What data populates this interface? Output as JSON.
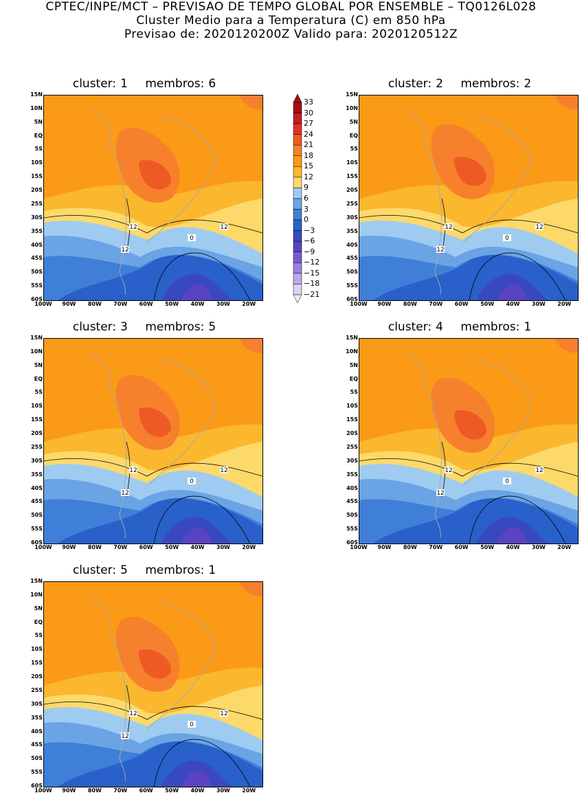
{
  "title": {
    "line1": "CPTEC/INPE/MCT – PREVISAO DE TEMPO GLOBAL POR ENSEMBLE – TQ0126L028",
    "line2": "Cluster Medio para a Temperatura (C) em 850 hPa",
    "line3": "Previsao de: 2020120200Z    Valido para: 2020120512Z"
  },
  "axes": {
    "y_ticks": [
      "15N",
      "10N",
      "5N",
      "EQ",
      "5S",
      "10S",
      "15S",
      "20S",
      "25S",
      "30S",
      "35S",
      "40S",
      "45S",
      "50S",
      "55S",
      "60S"
    ],
    "x_ticks": [
      "100W",
      "90W",
      "80W",
      "70W",
      "60W",
      "50W",
      "40W",
      "30W",
      "20W"
    ]
  },
  "legend": {
    "labels": [
      "33",
      "30",
      "27",
      "24",
      "21",
      "18",
      "15",
      "12",
      "9",
      "6",
      "3",
      "0",
      "−3",
      "−6",
      "−9",
      "−12",
      "−15",
      "−18",
      "−21"
    ],
    "colors": [
      "#a50f15",
      "#c81d1f",
      "#e0342b",
      "#ee5a24",
      "#f7802c",
      "#fb9a16",
      "#fbb72e",
      "#fdd96a",
      "#9fcbf1",
      "#6aa4e5",
      "#3f7fd8",
      "#2960c9",
      "#3a48c0",
      "#5a43c0",
      "#7a5ad0",
      "#9a80de",
      "#bba8ea",
      "#dcd2f5"
    ]
  },
  "contour_labels": {
    "twelve": "12",
    "zero": "0"
  },
  "chart_data": [
    {
      "type": "heatmap",
      "cluster_label": "cluster:",
      "cluster": "1",
      "members_label": "membros:",
      "members": "6",
      "variable": "Temperature (C) at 850 hPa",
      "lat_range": [
        -60,
        15
      ],
      "lon_range": [
        -100,
        -15
      ],
      "contour_levels": [
        0,
        12
      ]
    },
    {
      "type": "heatmap",
      "cluster_label": "cluster:",
      "cluster": "2",
      "members_label": "membros:",
      "members": "2",
      "variable": "Temperature (C) at 850 hPa",
      "lat_range": [
        -60,
        15
      ],
      "lon_range": [
        -100,
        -15
      ],
      "contour_levels": [
        0,
        12
      ]
    },
    {
      "type": "heatmap",
      "cluster_label": "cluster:",
      "cluster": "3",
      "members_label": "membros:",
      "members": "5",
      "variable": "Temperature (C) at 850 hPa",
      "lat_range": [
        -60,
        15
      ],
      "lon_range": [
        -100,
        -15
      ],
      "contour_levels": [
        0,
        12
      ]
    },
    {
      "type": "heatmap",
      "cluster_label": "cluster:",
      "cluster": "4",
      "members_label": "membros:",
      "members": "1",
      "variable": "Temperature (C) at 850 hPa",
      "lat_range": [
        -60,
        15
      ],
      "lon_range": [
        -100,
        -15
      ],
      "contour_levels": [
        0,
        12
      ]
    },
    {
      "type": "heatmap",
      "cluster_label": "cluster:",
      "cluster": "5",
      "members_label": "membros:",
      "members": "1",
      "variable": "Temperature (C) at 850 hPa",
      "lat_range": [
        -60,
        15
      ],
      "lon_range": [
        -100,
        -15
      ],
      "contour_levels": [
        0,
        12
      ]
    }
  ]
}
